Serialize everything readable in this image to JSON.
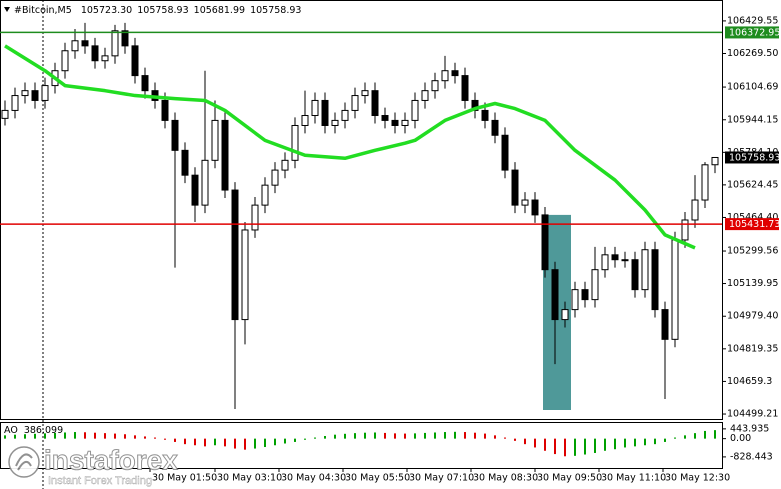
{
  "chart_data": [
    {
      "type": "candlestick",
      "title": "#Bitcoin,M5",
      "last_bar_labels": {
        "open": "105723.30",
        "high": "105758.93",
        "low": "105681.99",
        "close": "105758.93"
      },
      "up_color": "#ffffff",
      "down_color": "#000000",
      "open": [
        105951,
        105990,
        106063,
        106087,
        106039,
        106112,
        106185,
        106283,
        106332,
        106307,
        106234,
        106258,
        106381,
        106307,
        106161,
        106087,
        106039,
        105941,
        105794,
        105672,
        105525,
        105745,
        105941,
        105599,
        104963,
        105403,
        105525,
        105623,
        105697,
        105745,
        105916,
        105965,
        106039,
        105916,
        105941,
        105990,
        106063,
        106087,
        105965,
        105941,
        105916,
        105941,
        106039,
        106087,
        106136,
        106185,
        106161,
        106039,
        105990,
        105941,
        105868,
        105697,
        105525,
        105550,
        105477,
        105208,
        104963,
        105012,
        105110,
        105061,
        105208,
        105281,
        105257,
        105257,
        105110,
        105306,
        105012,
        104866,
        105354,
        105452,
        105550,
        105723.3
      ],
      "high": [
        106039,
        106102,
        106127,
        106127,
        106151,
        106224,
        106322,
        106390,
        106420,
        106346,
        106298,
        106410,
        106420,
        106346,
        106200,
        106127,
        106078,
        105980,
        105833,
        105711,
        106185,
        106039,
        105980,
        105638,
        105442,
        105565,
        105662,
        105736,
        105784,
        105956,
        106087,
        106078,
        106078,
        105980,
        106029,
        106102,
        106127,
        106127,
        106004,
        105980,
        105980,
        106078,
        106127,
        106175,
        106258,
        106224,
        106200,
        106078,
        106029,
        105980,
        105907,
        105736,
        105589,
        105589,
        105516,
        105247,
        105051,
        105149,
        105149,
        105320,
        105320,
        105320,
        105296,
        105296,
        105345,
        105345,
        105051,
        105394,
        105491,
        105672,
        105736,
        105758.93
      ],
      "low": [
        105916,
        105951,
        106024,
        105999,
        105999,
        106073,
        106146,
        106244,
        106268,
        106195,
        106195,
        106219,
        106268,
        106122,
        106048,
        105999,
        105902,
        105218,
        105633,
        105442,
        105486,
        105706,
        105560,
        104524,
        104841,
        105364,
        105486,
        105584,
        105657,
        105706,
        105877,
        105926,
        105877,
        105877,
        105902,
        105951,
        106024,
        105926,
        105902,
        105877,
        105877,
        105902,
        105999,
        106048,
        106097,
        106122,
        105999,
        105951,
        105902,
        105829,
        105657,
        105486,
        105486,
        105438,
        105169,
        104744,
        104924,
        104973,
        105022,
        105022,
        105169,
        105218,
        105218,
        105071,
        105071,
        104973,
        104573,
        104827,
        105315,
        105413,
        105511,
        105681.99
      ],
      "close": [
        105990,
        106063,
        106087,
        106039,
        106112,
        106185,
        106283,
        106332,
        106307,
        106234,
        106258,
        106381,
        106307,
        106161,
        106087,
        106039,
        105941,
        105794,
        105672,
        105525,
        105745,
        105941,
        105599,
        104963,
        105403,
        105525,
        105623,
        105697,
        105745,
        105916,
        105965,
        106039,
        105916,
        105941,
        105990,
        106063,
        106087,
        105965,
        105941,
        105916,
        105941,
        106039,
        106087,
        106136,
        106185,
        106161,
        106039,
        105990,
        105941,
        105868,
        105697,
        105525,
        105550,
        105477,
        105208,
        104963,
        105012,
        105110,
        105061,
        105208,
        105281,
        105257,
        105257,
        105110,
        105306,
        105012,
        104866,
        105354,
        105452,
        105550,
        105723,
        105758.93
      ],
      "ma": {
        "color": "#22dd22",
        "x": [
          0,
          4,
          6,
          10,
          13,
          17,
          20,
          22,
          26,
          30,
          34,
          37,
          40,
          41,
          44,
          47,
          49,
          51,
          54,
          57,
          61,
          64,
          66,
          69
        ],
        "values": [
          106307,
          106185,
          106112,
          106087,
          106063,
          106048,
          106039,
          105990,
          105843,
          105770,
          105755,
          105794,
          105829,
          105843,
          105941,
          105999,
          106024,
          105999,
          105941,
          105794,
          105648,
          105501,
          105379,
          105315
        ]
      },
      "levels": [
        {
          "value": 106372.95,
          "color": "#1e8c1e"
        },
        {
          "value": 105431.73,
          "color": "#e00000"
        }
      ],
      "highlight": {
        "color": "#4f9999",
        "from": 53.8,
        "to": 56.6,
        "top": 105477,
        "bottom": 104519
      },
      "ylim": [
        104474.8,
        106527.3
      ],
      "yticks": [
        106429.55,
        {
          "value": 106269.5,
          "label": "106269.50"
        },
        106104.69,
        105944.15,
        {
          "value": 105784.1,
          "label": "105784.10"
        },
        105624.45,
        {
          "value": 105464.4,
          "label": "105464.40"
        },
        105299.56,
        105139.95,
        {
          "value": 104979.4,
          "label": "104979.40"
        },
        104819.35,
        104659.3,
        104499.21
      ],
      "xticks": [
        {
          "value": 14.5,
          "label": "30 May 01:50"
        },
        {
          "value": 21,
          "label": "30 May 03:10"
        },
        {
          "value": 27.4,
          "label": "30 May 04:30"
        },
        {
          "value": 33.8,
          "label": "30 May 05:50"
        },
        {
          "value": 40.2,
          "label": "30 May 07:10"
        },
        {
          "value": 46.6,
          "label": "30 May 08:30"
        },
        {
          "value": 53,
          "label": "30 May 09:50"
        },
        {
          "value": 59.4,
          "label": "30 May 11:10"
        },
        {
          "value": 65.8,
          "label": "30 May 12:30"
        }
      ]
    },
    {
      "type": "bar",
      "title": "AO",
      "up_color": "#00a000",
      "down_color": "#dd0000",
      "values": [
        150,
        180,
        200,
        220,
        240,
        260,
        280,
        300,
        290,
        270,
        250,
        230,
        200,
        150,
        100,
        50,
        -50,
        -150,
        -250,
        -300,
        -350,
        -300,
        -350,
        -450,
        -500,
        -450,
        -380,
        -300,
        -220,
        -150,
        -50,
        50,
        120,
        180,
        220,
        250,
        270,
        280,
        260,
        240,
        230,
        240,
        260,
        280,
        300,
        310,
        300,
        270,
        230,
        150,
        50,
        -100,
        -250,
        -400,
        -550,
        -700,
        -800,
        -780,
        -720,
        -650,
        -550,
        -480,
        -400,
        -350,
        -300,
        -250,
        -150,
        50,
        150,
        250,
        350,
        386.099
      ],
      "ylim": [
        -1332,
        710
      ],
      "yticks": [
        443.935,
        {
          "value": 0,
          "label": "0.00"
        },
        -828.443
      ]
    }
  ],
  "watermark": {
    "brand": "instaforex",
    "tagline": "Instant Forex Trading"
  }
}
